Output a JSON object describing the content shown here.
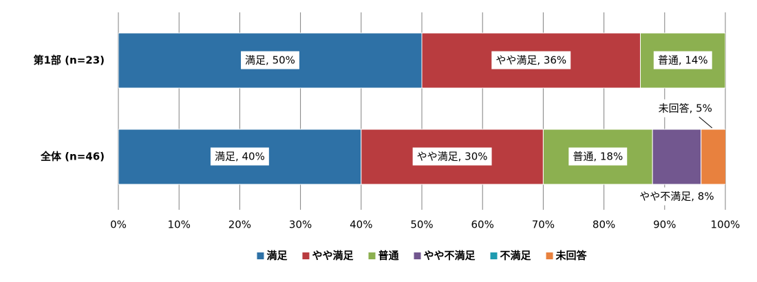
{
  "chart_data": {
    "type": "stacked-bar-horizontal",
    "categories": [
      "第1部 (n=23)",
      "全体 (n=46)"
    ],
    "series": [
      {
        "name": "満足",
        "color": "#2e71a6",
        "values": [
          50,
          40
        ],
        "value_labels": [
          "満足, 50%",
          "満足, 40%"
        ]
      },
      {
        "name": "やや満足",
        "color": "#b93c3f",
        "values": [
          36,
          30
        ],
        "value_labels": [
          "やや満足, 36%",
          "やや満足, 30%"
        ]
      },
      {
        "name": "普通",
        "color": "#8cb050",
        "values": [
          14,
          18
        ],
        "value_labels": [
          "普通, 14%",
          "普通, 18%"
        ]
      },
      {
        "name": "やや不満足",
        "color": "#72578f",
        "values": [
          0,
          8
        ],
        "value_labels": [
          null,
          "やや不満足, 8%"
        ]
      },
      {
        "name": "不満足",
        "color": "#1f9bb0",
        "values": [
          0,
          0
        ],
        "value_labels": [
          null,
          null
        ]
      },
      {
        "name": "未回答",
        "color": "#e8813e",
        "values": [
          0,
          5
        ],
        "value_labels": [
          null,
          "未回答, 5%"
        ]
      }
    ],
    "xlim": [
      0,
      100
    ],
    "xticks": [
      {
        "value": 0,
        "label": "0%"
      },
      {
        "value": 10,
        "label": "10%"
      },
      {
        "value": 20,
        "label": "20%"
      },
      {
        "value": 30,
        "label": "30%"
      },
      {
        "value": 40,
        "label": "40%"
      },
      {
        "value": 50,
        "label": "50%"
      },
      {
        "value": 60,
        "label": "60%"
      },
      {
        "value": 70,
        "label": "70%"
      },
      {
        "value": 80,
        "label": "80%"
      },
      {
        "value": 90,
        "label": "90%"
      },
      {
        "value": 100,
        "label": "100%"
      }
    ],
    "grid": true,
    "legend": "bottom"
  }
}
